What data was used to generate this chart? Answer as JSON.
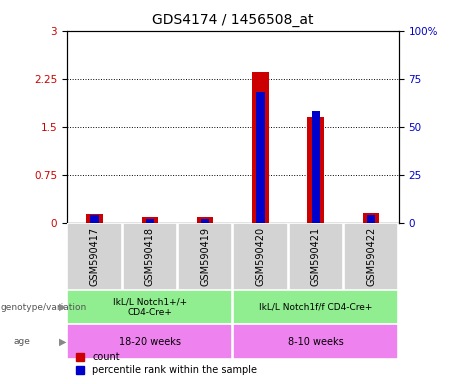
{
  "title": "GDS4174 / 1456508_at",
  "samples": [
    "GSM590417",
    "GSM590418",
    "GSM590419",
    "GSM590420",
    "GSM590421",
    "GSM590422"
  ],
  "count_values": [
    0.13,
    0.09,
    0.09,
    2.35,
    1.65,
    0.15
  ],
  "percentile_values": [
    0.04,
    0.02,
    0.02,
    0.68,
    0.58,
    0.04
  ],
  "ylim_left": [
    0,
    3
  ],
  "ylim_right": [
    0,
    100
  ],
  "yticks_left": [
    0,
    0.75,
    1.5,
    2.25,
    3
  ],
  "yticks_right": [
    0,
    25,
    50,
    75,
    100
  ],
  "ytick_labels_left": [
    "0",
    "0.75",
    "1.5",
    "2.25",
    "3"
  ],
  "ytick_labels_right": [
    "0",
    "25",
    "50",
    "75",
    "100%"
  ],
  "count_color": "#cc0000",
  "percentile_color": "#0000cc",
  "bg_color": "#ffffff",
  "label_area_bg": "#d3d3d3",
  "genotype_bg": "#90ee90",
  "age_bg": "#ee82ee",
  "genotype_labels": [
    "IkL/L Notch1+/+\nCD4-Cre+",
    "IkL/L Notch1f/f CD4-Cre+"
  ],
  "age_labels": [
    "18-20 weeks",
    "8-10 weeks"
  ],
  "left_label_genotype": "genotype/variation",
  "left_label_age": "age",
  "legend_count": "count",
  "legend_percentile": "percentile rank within the sample"
}
